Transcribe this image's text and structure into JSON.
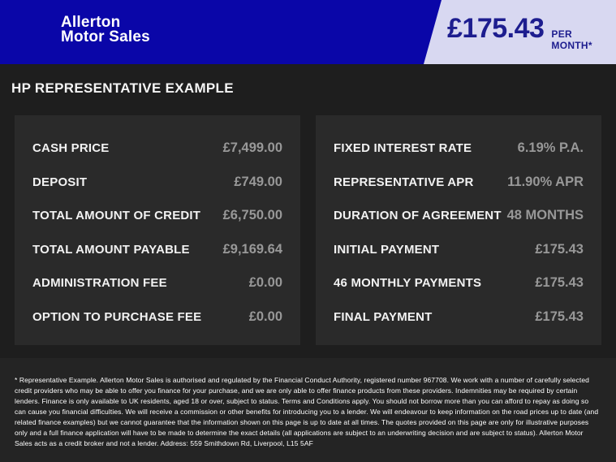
{
  "header": {
    "brand_line1": "Allerton",
    "brand_line2": "Motor Sales",
    "price": "£175.43",
    "price_suffix": "PER MONTH*"
  },
  "section_title": "HP REPRESENTATIVE EXAMPLE",
  "finance_table": {
    "left_rows": [
      {
        "label": "CASH PRICE",
        "value": "£7,499.00"
      },
      {
        "label": "DEPOSIT",
        "value": "£749.00"
      },
      {
        "label": "TOTAL AMOUNT OF CREDIT",
        "value": "£6,750.00"
      },
      {
        "label": "TOTAL AMOUNT PAYABLE",
        "value": "£9,169.64"
      },
      {
        "label": "ADMINISTRATION FEE",
        "value": "£0.00"
      },
      {
        "label": "OPTION TO PURCHASE FEE",
        "value": "£0.00"
      }
    ],
    "right_rows": [
      {
        "label": "FIXED INTEREST RATE",
        "value": "6.19% P.A."
      },
      {
        "label": "REPRESENTATIVE APR",
        "value": "11.90% APR"
      },
      {
        "label": "DURATION OF AGREEMENT",
        "value": "48 MONTHS"
      },
      {
        "label": "INITIAL PAYMENT",
        "value": "£175.43"
      },
      {
        "label": "46 MONTHLY PAYMENTS",
        "value": "£175.43"
      },
      {
        "label": "FINAL PAYMENT",
        "value": "£175.43"
      }
    ]
  },
  "disclaimer": "* Representative Example. Allerton Motor Sales is authorised and regulated by the Financial Conduct Authority, registered number 967708. We work with a number of carefully selected credit providers who may be able to offer you finance for your purchase, and we are only able to offer finance products from these providers. Indemnities may be required by certain lenders. Finance is only available to UK residents, aged 18 or over, subject to status. Terms and Conditions apply. You should not borrow more than you can afford to repay as doing so can cause you financial difficulties. We will receive a commission or other benefits for introducing you to a lender. We will endeavour to keep information on the road prices up to date (and related finance examples) but we cannot guarantee that the information shown on this page is up to date at all times. The quotes provided on this page are only for illustrative purposes only and a full finance application will have to be made to determine the exact details (all applications are subject to an underwriting decision and are subject to status). Allerton Motor Sales acts as a credit broker and not a lender. Address: 559 Smithdown Rd, Liverpool, L15 5AF",
  "colors": {
    "header_blue": "#0a06a8",
    "ribbon_lavender": "#d8d8f1",
    "ribbon_text_navy": "#1d1d8f",
    "background_dark": "#1e1e1e",
    "panel_dark": "#2a2a2a",
    "footer_dark": "#242424",
    "label_white": "#f2f2f2",
    "value_gray": "#989898"
  }
}
